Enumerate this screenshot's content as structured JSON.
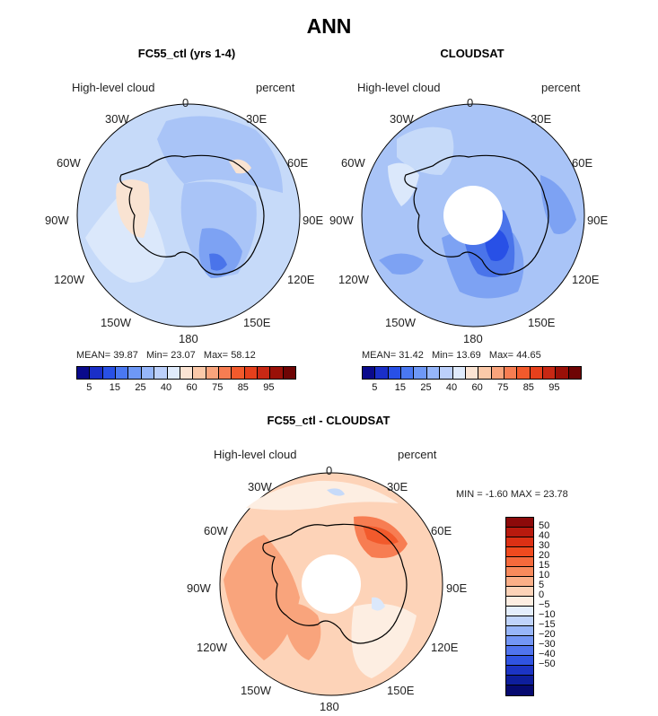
{
  "figure_title": "ANN",
  "panels": {
    "left": {
      "title": "FC55_ctl (yrs 1-4)",
      "variable": "High-level cloud",
      "units": "percent",
      "stats": {
        "mean_label": "MEAN=",
        "mean": "39.87",
        "min_label": "Min=",
        "min": "23.07",
        "max_label": "Max=",
        "max": "58.12"
      }
    },
    "right": {
      "title": "CLOUDSAT",
      "variable": "High-level cloud",
      "units": "percent",
      "stats": {
        "mean_label": "MEAN=",
        "mean": "31.42",
        "min_label": "Min=",
        "min": "13.69",
        "max_label": "Max=",
        "max": "44.65"
      }
    },
    "diff": {
      "title": "FC55_ctl - CLOUDSAT",
      "variable": "High-level cloud",
      "units": "percent",
      "stats": {
        "min_label": "MIN =",
        "min": "-1.60",
        "max_label": "MAX =",
        "max": "23.78"
      }
    }
  },
  "longitude_labels": {
    "l0": "0",
    "l30e": "30E",
    "l60e": "60E",
    "l90e": "90E",
    "l120e": "120E",
    "l150e": "150E",
    "l180": "180",
    "l150w": "150W",
    "l120w": "120W",
    "l90w": "90W",
    "l60w": "60W",
    "l30w": "30W"
  },
  "abs_colorbar": {
    "colors": [
      "#0a0a8c",
      "#1a2fc8",
      "#2850e6",
      "#4a78f2",
      "#6e98f6",
      "#96b6fa",
      "#bcd0fb",
      "#e0ebfc",
      "#fbe4d3",
      "#fbc9a9",
      "#f9a47c",
      "#f77d52",
      "#f25a2c",
      "#e6401c",
      "#c82814",
      "#9a1008",
      "#6e0404"
    ],
    "ticks": [
      "5",
      "15",
      "25",
      "40",
      "60",
      "75",
      "85",
      "95"
    ]
  },
  "diff_colorbar": {
    "colors": [
      "#8c0a0a",
      "#b81a0e",
      "#dc3014",
      "#f04a1e",
      "#f56a3c",
      "#f88a5c",
      "#fbaf88",
      "#fdd3b8",
      "#fdeee2",
      "#e4eefc",
      "#c0d4fb",
      "#98b6f9",
      "#7396f5",
      "#5074ee",
      "#3054e2",
      "#1c34c4",
      "#0e1e9c",
      "#060a70"
    ],
    "ticks": [
      "50",
      "40",
      "30",
      "20",
      "15",
      "10",
      "5",
      "0",
      "−5",
      "−10",
      "−15",
      "−20",
      "−30",
      "−40",
      "−50"
    ]
  }
}
